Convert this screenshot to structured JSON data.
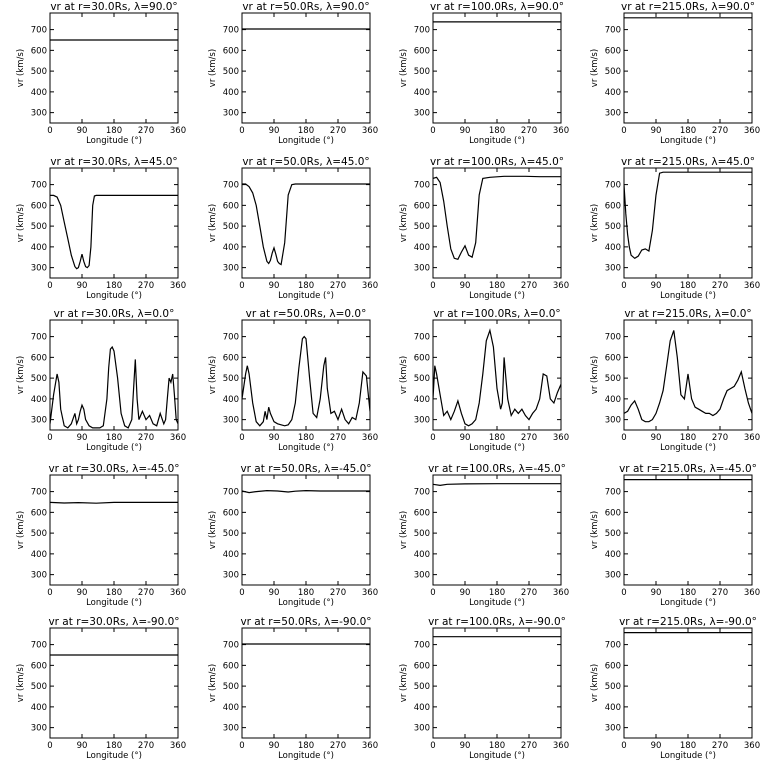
{
  "figure": {
    "ylabel": "v_r (km/s)",
    "xlabel": "Longitude (°)"
  },
  "chart_data": [
    {
      "type": "line",
      "title": "vr at r=30.0Rs, λ=90.0°",
      "xlabel": "Longitude (°)",
      "ylabel": "vr (km/s)",
      "xlim": [
        0,
        360
      ],
      "ylim": [
        250,
        780
      ],
      "xticks": [
        0,
        90,
        180,
        270,
        360
      ],
      "yticks": [
        300,
        400,
        500,
        600,
        700
      ],
      "grid": false,
      "x": [
        0,
        360
      ],
      "values": [
        650,
        650
      ]
    },
    {
      "type": "line",
      "title": "vr at r=50.0Rs, λ=90.0°",
      "xlabel": "Longitude (°)",
      "ylabel": "vr (km/s)",
      "xlim": [
        0,
        360
      ],
      "ylim": [
        250,
        780
      ],
      "xticks": [
        0,
        90,
        180,
        270,
        360
      ],
      "yticks": [
        300,
        400,
        500,
        600,
        700
      ],
      "grid": false,
      "x": [
        0,
        360
      ],
      "values": [
        703,
        703
      ]
    },
    {
      "type": "line",
      "title": "vr at r=100.0Rs, λ=90.0°",
      "xlabel": "Longitude (°)",
      "ylabel": "vr (km/s)",
      "xlim": [
        0,
        360
      ],
      "ylim": [
        250,
        780
      ],
      "xticks": [
        0,
        90,
        180,
        270,
        360
      ],
      "yticks": [
        300,
        400,
        500,
        600,
        700
      ],
      "grid": false,
      "x": [
        0,
        360
      ],
      "values": [
        737,
        737
      ]
    },
    {
      "type": "line",
      "title": "vr at r=215.0Rs, λ=90.0°",
      "xlabel": "Longitude (°)",
      "ylabel": "vr (km/s)",
      "xlim": [
        0,
        360
      ],
      "ylim": [
        250,
        780
      ],
      "xticks": [
        0,
        90,
        180,
        270,
        360
      ],
      "yticks": [
        300,
        400,
        500,
        600,
        700
      ],
      "grid": false,
      "x": [
        0,
        360
      ],
      "values": [
        757,
        757
      ]
    },
    {
      "type": "line",
      "title": "vr at r=30.0Rs, λ=45.0°",
      "xlabel": "Longitude (°)",
      "ylabel": "vr (km/s)",
      "xlim": [
        0,
        360
      ],
      "ylim": [
        250,
        780
      ],
      "xticks": [
        0,
        90,
        180,
        270,
        360
      ],
      "yticks": [
        300,
        400,
        500,
        600,
        700
      ],
      "grid": false,
      "x": [
        0,
        10,
        20,
        30,
        40,
        50,
        60,
        70,
        75,
        80,
        85,
        90,
        95,
        100,
        105,
        110,
        115,
        120,
        125,
        130,
        140,
        160,
        200,
        260,
        300,
        360
      ],
      "values": [
        648,
        648,
        640,
        600,
        520,
        440,
        360,
        305,
        295,
        300,
        330,
        365,
        330,
        305,
        300,
        310,
        400,
        600,
        645,
        648,
        648,
        648,
        648,
        648,
        648,
        648
      ]
    },
    {
      "type": "line",
      "title": "vr at r=50.0Rs, λ=45.0°",
      "xlabel": "Longitude (°)",
      "ylabel": "vr (km/s)",
      "xlim": [
        0,
        360
      ],
      "ylim": [
        250,
        780
      ],
      "xticks": [
        0,
        90,
        180,
        270,
        360
      ],
      "yticks": [
        300,
        400,
        500,
        600,
        700
      ],
      "grid": false,
      "x": [
        0,
        10,
        20,
        30,
        40,
        50,
        60,
        70,
        75,
        80,
        85,
        90,
        95,
        100,
        105,
        110,
        120,
        130,
        140,
        150,
        200,
        300,
        360
      ],
      "values": [
        703,
        703,
        690,
        660,
        600,
        500,
        400,
        330,
        320,
        335,
        370,
        395,
        365,
        330,
        320,
        315,
        420,
        650,
        700,
        703,
        703,
        703,
        703
      ]
    },
    {
      "type": "line",
      "title": "vr at r=100.0Rs, λ=45.0°",
      "xlabel": "Longitude (°)",
      "ylabel": "vr (km/s)",
      "xlim": [
        0,
        360
      ],
      "ylim": [
        250,
        780
      ],
      "xticks": [
        0,
        90,
        180,
        270,
        360
      ],
      "yticks": [
        300,
        400,
        500,
        600,
        700
      ],
      "grid": false,
      "x": [
        0,
        10,
        20,
        30,
        40,
        50,
        60,
        70,
        80,
        90,
        100,
        110,
        120,
        130,
        140,
        160,
        200,
        260,
        300,
        360
      ],
      "values": [
        730,
        735,
        710,
        620,
        500,
        390,
        345,
        340,
        375,
        405,
        360,
        350,
        420,
        650,
        730,
        735,
        740,
        740,
        738,
        738
      ]
    },
    {
      "type": "line",
      "title": "vr at r=215.0Rs, λ=45.0°",
      "xlabel": "Longitude (°)",
      "ylabel": "vr (km/s)",
      "xlim": [
        0,
        360
      ],
      "ylim": [
        250,
        780
      ],
      "xticks": [
        0,
        90,
        180,
        270,
        360
      ],
      "yticks": [
        300,
        400,
        500,
        600,
        700
      ],
      "grid": false,
      "x": [
        0,
        5,
        10,
        15,
        20,
        30,
        40,
        50,
        60,
        70,
        80,
        90,
        100,
        110,
        120,
        150,
        200,
        300,
        360
      ],
      "values": [
        700,
        560,
        460,
        400,
        360,
        345,
        355,
        385,
        390,
        380,
        480,
        650,
        755,
        760,
        760,
        760,
        760,
        760,
        760
      ]
    },
    {
      "type": "line",
      "title": "vr at r=30.0Rs, λ=0.0°",
      "xlabel": "Longitude (°)",
      "ylabel": "vr (km/s)",
      "xlim": [
        0,
        360
      ],
      "ylim": [
        250,
        780
      ],
      "xticks": [
        0,
        90,
        180,
        270,
        360
      ],
      "yticks": [
        300,
        400,
        500,
        600,
        700
      ],
      "grid": false,
      "x": [
        0,
        10,
        20,
        25,
        30,
        40,
        50,
        60,
        70,
        75,
        80,
        85,
        90,
        95,
        100,
        110,
        120,
        130,
        140,
        150,
        160,
        165,
        170,
        175,
        180,
        190,
        200,
        210,
        220,
        230,
        235,
        240,
        245,
        250,
        260,
        270,
        280,
        290,
        300,
        310,
        320,
        325,
        330,
        335,
        340,
        345,
        350,
        355,
        360
      ],
      "values": [
        280,
        420,
        520,
        480,
        350,
        270,
        260,
        280,
        330,
        280,
        300,
        340,
        370,
        350,
        300,
        270,
        260,
        260,
        260,
        270,
        400,
        550,
        640,
        650,
        630,
        500,
        330,
        270,
        260,
        300,
        450,
        590,
        400,
        300,
        340,
        300,
        320,
        280,
        270,
        330,
        280,
        300,
        400,
        500,
        480,
        520,
        420,
        300,
        280
      ]
    },
    {
      "type": "line",
      "title": "vr at r=50.0Rs, λ=0.0°",
      "xlabel": "Longitude (°)",
      "ylabel": "vr (km/s)",
      "xlim": [
        0,
        360
      ],
      "ylim": [
        250,
        780
      ],
      "xticks": [
        0,
        90,
        180,
        270,
        360
      ],
      "yticks": [
        300,
        400,
        500,
        600,
        700
      ],
      "grid": false,
      "x": [
        0,
        10,
        15,
        20,
        30,
        40,
        50,
        60,
        65,
        70,
        75,
        80,
        90,
        100,
        110,
        120,
        130,
        140,
        150,
        160,
        170,
        175,
        180,
        190,
        200,
        210,
        220,
        230,
        235,
        240,
        250,
        260,
        270,
        280,
        290,
        300,
        310,
        320,
        330,
        340,
        350,
        360
      ],
      "values": [
        400,
        520,
        560,
        520,
        380,
        290,
        270,
        290,
        340,
        300,
        360,
        330,
        290,
        280,
        275,
        270,
        275,
        300,
        380,
        550,
        690,
        700,
        690,
        500,
        330,
        310,
        400,
        560,
        600,
        450,
        330,
        340,
        300,
        350,
        300,
        280,
        310,
        300,
        380,
        530,
        510,
        340
      ]
    },
    {
      "type": "line",
      "title": "vr at r=100.0Rs, λ=0.0°",
      "xlabel": "Longitude (°)",
      "ylabel": "vr (km/s)",
      "xlim": [
        0,
        360
      ],
      "ylim": [
        250,
        780
      ],
      "xticks": [
        0,
        90,
        180,
        270,
        360
      ],
      "yticks": [
        300,
        400,
        500,
        600,
        700
      ],
      "grid": false,
      "x": [
        0,
        5,
        10,
        20,
        30,
        40,
        50,
        60,
        70,
        80,
        90,
        100,
        110,
        120,
        130,
        140,
        150,
        160,
        170,
        180,
        190,
        195,
        200,
        210,
        220,
        230,
        240,
        250,
        260,
        270,
        280,
        290,
        300,
        310,
        320,
        330,
        340,
        350,
        360
      ],
      "values": [
        400,
        560,
        520,
        420,
        320,
        340,
        300,
        340,
        390,
        330,
        280,
        270,
        280,
        300,
        380,
        520,
        680,
        730,
        650,
        450,
        350,
        380,
        600,
        400,
        320,
        350,
        330,
        350,
        320,
        300,
        330,
        350,
        400,
        520,
        510,
        400,
        380,
        430,
        470
      ]
    },
    {
      "type": "line",
      "title": "vr at r=215.0Rs, λ=0.0°",
      "xlabel": "Longitude (°)",
      "ylabel": "vr (km/s)",
      "xlim": [
        0,
        360
      ],
      "ylim": [
        250,
        780
      ],
      "xticks": [
        0,
        90,
        180,
        270,
        360
      ],
      "yticks": [
        300,
        400,
        500,
        600,
        700
      ],
      "grid": false,
      "x": [
        0,
        10,
        20,
        30,
        40,
        50,
        60,
        70,
        80,
        90,
        100,
        110,
        120,
        130,
        140,
        150,
        160,
        170,
        180,
        190,
        200,
        210,
        220,
        230,
        240,
        250,
        260,
        270,
        280,
        290,
        300,
        310,
        320,
        330,
        340,
        350,
        360
      ],
      "values": [
        330,
        340,
        370,
        390,
        350,
        300,
        290,
        290,
        300,
        330,
        380,
        440,
        560,
        680,
        730,
        600,
        420,
        400,
        520,
        400,
        360,
        350,
        340,
        330,
        330,
        320,
        330,
        350,
        400,
        440,
        450,
        460,
        490,
        530,
        450,
        380,
        330
      ]
    },
    {
      "type": "line",
      "title": "vr at r=30.0Rs, λ=-45.0°",
      "xlabel": "Longitude (°)",
      "ylabel": "vr (km/s)",
      "xlim": [
        0,
        360
      ],
      "ylim": [
        250,
        780
      ],
      "xticks": [
        0,
        90,
        180,
        270,
        360
      ],
      "yticks": [
        300,
        400,
        500,
        600,
        700
      ],
      "grid": false,
      "x": [
        0,
        40,
        80,
        130,
        180,
        240,
        300,
        360
      ],
      "values": [
        648,
        645,
        647,
        644,
        648,
        648,
        648,
        648
      ]
    },
    {
      "type": "line",
      "title": "vr at r=50.0Rs, λ=-45.0°",
      "xlabel": "Longitude (°)",
      "ylabel": "vr (km/s)",
      "xlim": [
        0,
        360
      ],
      "ylim": [
        250,
        780
      ],
      "xticks": [
        0,
        90,
        180,
        270,
        360
      ],
      "yticks": [
        300,
        400,
        500,
        600,
        700
      ],
      "grid": false,
      "x": [
        0,
        20,
        40,
        70,
        100,
        130,
        150,
        180,
        220,
        260,
        300,
        360
      ],
      "values": [
        703,
        695,
        700,
        705,
        703,
        698,
        702,
        705,
        703,
        703,
        703,
        703
      ]
    },
    {
      "type": "line",
      "title": "vr at r=100.0Rs, λ=-45.0°",
      "xlabel": "Longitude (°)",
      "ylabel": "vr (km/s)",
      "xlim": [
        0,
        360
      ],
      "ylim": [
        250,
        780
      ],
      "xticks": [
        0,
        90,
        180,
        270,
        360
      ],
      "yticks": [
        300,
        400,
        500,
        600,
        700
      ],
      "grid": false,
      "x": [
        0,
        20,
        40,
        90,
        180,
        270,
        360
      ],
      "values": [
        735,
        730,
        735,
        737,
        738,
        738,
        738
      ]
    },
    {
      "type": "line",
      "title": "vr at r=215.0Rs, λ=-45.0°",
      "xlabel": "Longitude (°)",
      "ylabel": "vr (km/s)",
      "xlim": [
        0,
        360
      ],
      "ylim": [
        250,
        780
      ],
      "xticks": [
        0,
        90,
        180,
        270,
        360
      ],
      "yticks": [
        300,
        400,
        500,
        600,
        700
      ],
      "grid": false,
      "x": [
        0,
        360
      ],
      "values": [
        758,
        758
      ]
    },
    {
      "type": "line",
      "title": "vr at r=30.0Rs, λ=-90.0°",
      "xlabel": "Longitude (°)",
      "ylabel": "vr (km/s)",
      "xlim": [
        0,
        360
      ],
      "ylim": [
        250,
        780
      ],
      "xticks": [
        0,
        90,
        180,
        270,
        360
      ],
      "yticks": [
        300,
        400,
        500,
        600,
        700
      ],
      "grid": false,
      "x": [
        0,
        360
      ],
      "values": [
        650,
        650
      ]
    },
    {
      "type": "line",
      "title": "vr at r=50.0Rs, λ=-90.0°",
      "xlabel": "Longitude (°)",
      "ylabel": "vr (km/s)",
      "xlim": [
        0,
        360
      ],
      "ylim": [
        250,
        780
      ],
      "xticks": [
        0,
        90,
        180,
        270,
        360
      ],
      "yticks": [
        300,
        400,
        500,
        600,
        700
      ],
      "grid": false,
      "x": [
        0,
        360
      ],
      "values": [
        703,
        703
      ]
    },
    {
      "type": "line",
      "title": "vr at r=100.0Rs, λ=-90.0°",
      "xlabel": "Longitude (°)",
      "ylabel": "vr (km/s)",
      "xlim": [
        0,
        360
      ],
      "ylim": [
        250,
        780
      ],
      "xticks": [
        0,
        90,
        180,
        270,
        360
      ],
      "yticks": [
        300,
        400,
        500,
        600,
        700
      ],
      "grid": false,
      "x": [
        0,
        360
      ],
      "values": [
        738,
        738
      ]
    },
    {
      "type": "line",
      "title": "vr at r=215.0Rs, λ=-90.0°",
      "xlabel": "Longitude (°)",
      "ylabel": "vr (km/s)",
      "xlim": [
        0,
        360
      ],
      "ylim": [
        250,
        780
      ],
      "xticks": [
        0,
        90,
        180,
        270,
        360
      ],
      "yticks": [
        300,
        400,
        500,
        600,
        700
      ],
      "grid": false,
      "x": [
        0,
        360
      ],
      "values": [
        758,
        758
      ]
    }
  ]
}
